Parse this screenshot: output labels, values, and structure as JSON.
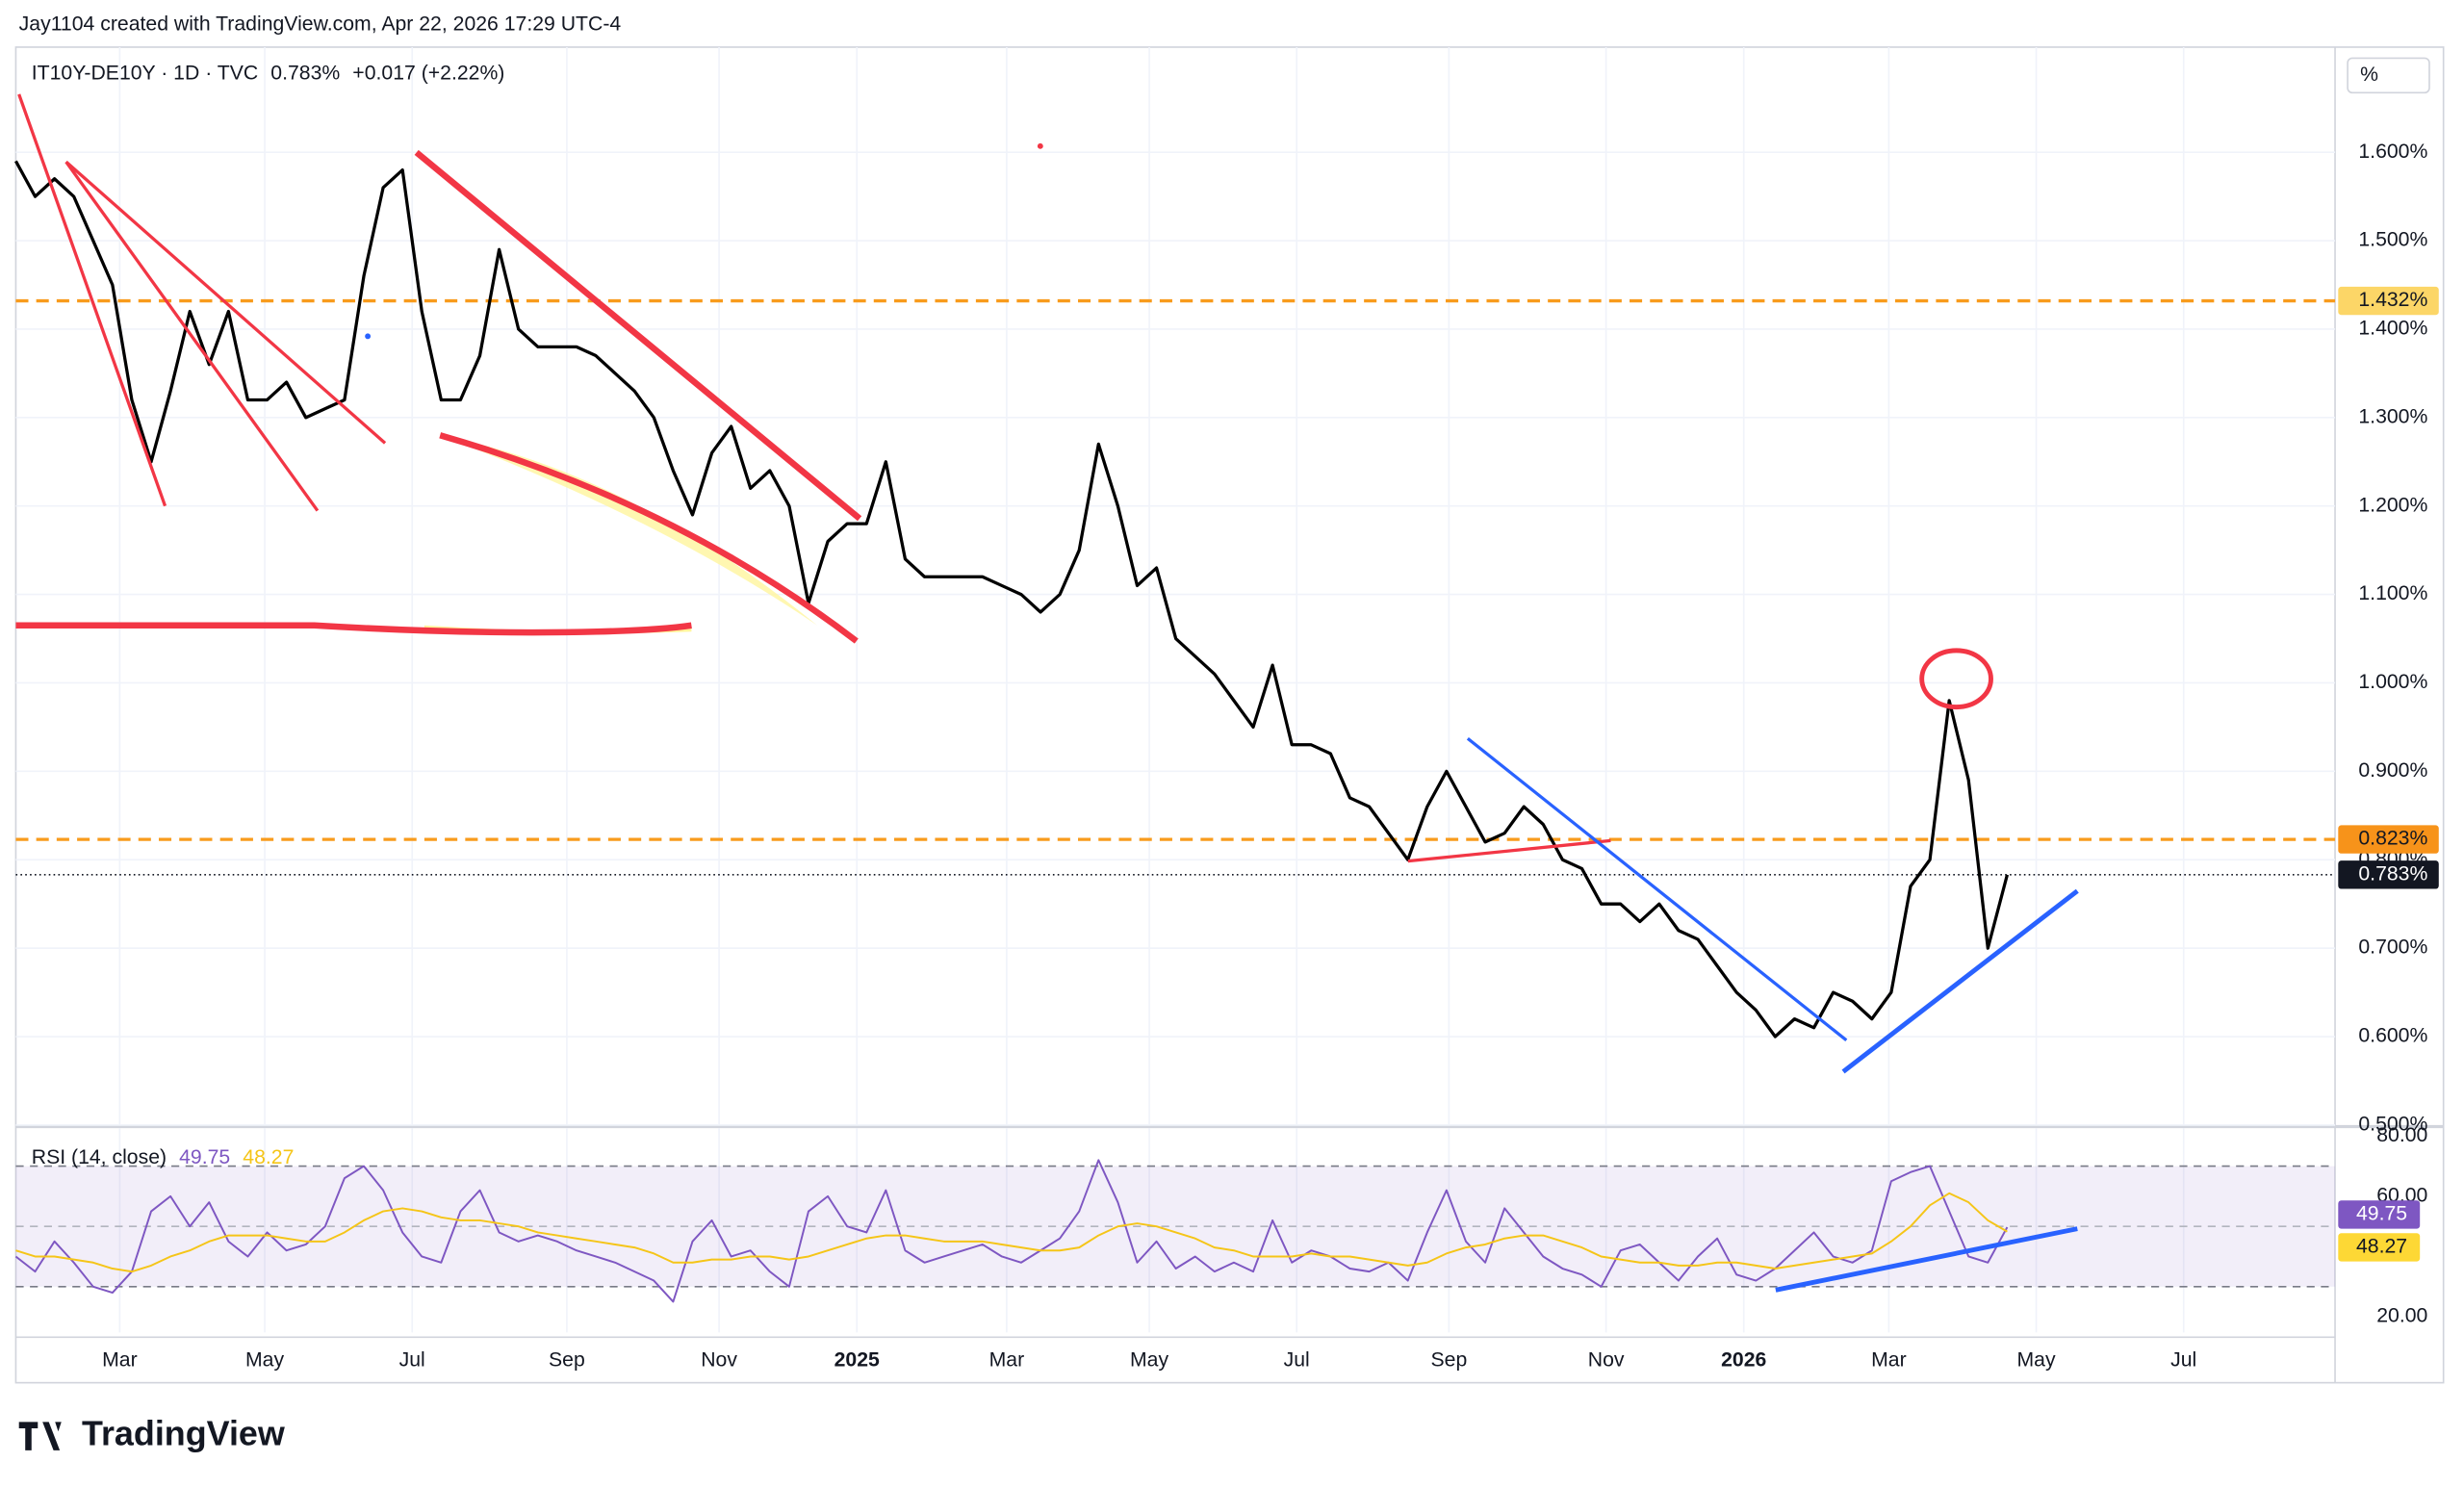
{
  "header": {
    "created": "Jay1104 created with TradingView.com, Apr 22, 2026 17:29 UTC-4"
  },
  "unit": "%",
  "logo": "TradingView",
  "chart_data": [
    {
      "type": "line",
      "title": "IT10Y-DE10Y · 1D · TVC",
      "last": {
        "value": 0.783,
        "label": "0.783%"
      },
      "change": "+0.017 (+2.22%)",
      "x": [
        0,
        8,
        16,
        24,
        32,
        40,
        48,
        56,
        64,
        72,
        80,
        88,
        96,
        104,
        112,
        120,
        128,
        136,
        144,
        152,
        160,
        168,
        176,
        184,
        192,
        200,
        208,
        216,
        224,
        232,
        240,
        248,
        256,
        264,
        272,
        280,
        288,
        296,
        304,
        312,
        320,
        328,
        336,
        344,
        352,
        360,
        368,
        376,
        384,
        392,
        400,
        408,
        416,
        424,
        432,
        440,
        448,
        456,
        464,
        472,
        480,
        488,
        496,
        504,
        512,
        520,
        528,
        536,
        544,
        552,
        560,
        568,
        576,
        584,
        592,
        600,
        608,
        616,
        624,
        632,
        640,
        648,
        656,
        664,
        672,
        680,
        688,
        696,
        704,
        712,
        720,
        728,
        736,
        744,
        752,
        760,
        768,
        776,
        784,
        792,
        800,
        808,
        816,
        824
      ],
      "xlim": [
        0,
        959
      ],
      "xticks": [
        {
          "value": 43,
          "label": "Mar"
        },
        {
          "value": 103,
          "label": "May"
        },
        {
          "value": 164,
          "label": "Jul"
        },
        {
          "value": 228,
          "label": "Sep"
        },
        {
          "value": 291,
          "label": "Nov"
        },
        {
          "value": 348,
          "label": "2025"
        },
        {
          "value": 410,
          "label": "Mar"
        },
        {
          "value": 469,
          "label": "May"
        },
        {
          "value": 530,
          "label": "Jul"
        },
        {
          "value": 593,
          "label": "Sep"
        },
        {
          "value": 658,
          "label": "Nov"
        },
        {
          "value": 715,
          "label": "2026"
        },
        {
          "value": 775,
          "label": "Mar"
        },
        {
          "value": 836,
          "label": "May"
        },
        {
          "value": 897,
          "label": "Jul"
        }
      ],
      "ylim": [
        0.5,
        1.71
      ],
      "yticks": [
        {
          "value": 0.5,
          "label": "0.500%"
        },
        {
          "value": 0.6,
          "label": "0.600%"
        },
        {
          "value": 0.7,
          "label": "0.700%"
        },
        {
          "value": 0.8,
          "label": "0.800%"
        },
        {
          "value": 0.9,
          "label": "0.900%"
        },
        {
          "value": 1.0,
          "label": "1.000%"
        },
        {
          "value": 1.1,
          "label": "1.100%"
        },
        {
          "value": 1.2,
          "label": "1.200%"
        },
        {
          "value": 1.3,
          "label": "1.300%"
        },
        {
          "value": 1.4,
          "label": "1.400%"
        },
        {
          "value": 1.5,
          "label": "1.500%"
        },
        {
          "value": 1.6,
          "label": "1.600%"
        }
      ],
      "grid": true,
      "series": [
        {
          "name": "IT10Y-DE10Y · 1D · TVC",
          "color": "#000000",
          "values": [
            1.59,
            1.55,
            1.57,
            1.55,
            1.5,
            1.45,
            1.32,
            1.25,
            1.33,
            1.42,
            1.36,
            1.42,
            1.32,
            1.32,
            1.34,
            1.3,
            1.31,
            1.32,
            1.46,
            1.56,
            1.58,
            1.42,
            1.32,
            1.32,
            1.37,
            1.49,
            1.4,
            1.38,
            1.38,
            1.38,
            1.37,
            1.35,
            1.33,
            1.3,
            1.24,
            1.19,
            1.26,
            1.29,
            1.22,
            1.24,
            1.2,
            1.09,
            1.16,
            1.18,
            1.18,
            1.25,
            1.14,
            1.12,
            1.12,
            1.12,
            1.12,
            1.11,
            1.1,
            1.08,
            1.1,
            1.15,
            1.27,
            1.2,
            1.11,
            1.13,
            1.05,
            1.03,
            1.01,
            0.98,
            0.95,
            1.02,
            0.93,
            0.93,
            0.92,
            0.87,
            0.86,
            0.83,
            0.8,
            0.86,
            0.9,
            0.86,
            0.82,
            0.83,
            0.86,
            0.84,
            0.8,
            0.79,
            0.75,
            0.75,
            0.73,
            0.75,
            0.72,
            0.71,
            0.68,
            0.65,
            0.63,
            0.6,
            0.62,
            0.61,
            0.65,
            0.64,
            0.62,
            0.65,
            0.77,
            0.8,
            0.98,
            0.89,
            0.7,
            0.783
          ]
        }
      ],
      "hlines": [
        {
          "value": 1.432,
          "label": "1.432%",
          "color": "#f89b1c",
          "badge": "#fcd667"
        },
        {
          "value": 0.823,
          "label": "0.823%",
          "color": "#f89b1c",
          "badge": "#f7931a"
        }
      ]
    },
    {
      "type": "line",
      "title": "RSI (14, close)",
      "ylim": [
        14.8,
        82.6
      ],
      "yticks": [
        {
          "value": 20,
          "label": "20.00"
        },
        {
          "value": 60,
          "label": "60.00"
        },
        {
          "value": 80,
          "label": "80.00"
        }
      ],
      "bands": [
        30,
        70
      ],
      "midline": 50,
      "series": [
        {
          "name": "RSI (14, close)",
          "color": "#7e57c2",
          "values": [
            40,
            35,
            45,
            38,
            30,
            28,
            35,
            55,
            60,
            50,
            58,
            45,
            40,
            48,
            42,
            44,
            50,
            66,
            70,
            62,
            48,
            40,
            38,
            55,
            62,
            48,
            45,
            47,
            45,
            42,
            40,
            38,
            35,
            32,
            25,
            45,
            52,
            40,
            42,
            35,
            30,
            55,
            60,
            50,
            48,
            62,
            42,
            38,
            40,
            42,
            44,
            40,
            38,
            42,
            46,
            55,
            72,
            58,
            38,
            45,
            36,
            40,
            35,
            38,
            35,
            52,
            38,
            42,
            40,
            36,
            35,
            38,
            32,
            48,
            62,
            45,
            38,
            56,
            48,
            40,
            36,
            34,
            30,
            42,
            44,
            38,
            32,
            40,
            46,
            34,
            32,
            36,
            42,
            48,
            40,
            38,
            42,
            65,
            68,
            70,
            55,
            40,
            38,
            49.75
          ]
        },
        {
          "color": "#f5c518",
          "values": [
            42,
            40,
            40,
            39,
            38,
            36,
            35,
            37,
            40,
            42,
            45,
            47,
            47,
            47,
            46,
            45,
            45,
            48,
            52,
            55,
            56,
            55,
            53,
            52,
            52,
            51,
            50,
            48,
            47,
            46,
            45,
            44,
            43,
            41,
            38,
            38,
            39,
            39,
            40,
            40,
            39,
            40,
            42,
            44,
            46,
            47,
            47,
            46,
            45,
            45,
            45,
            44,
            43,
            42,
            42,
            43,
            47,
            50,
            51,
            50,
            48,
            46,
            43,
            42,
            40,
            40,
            40,
            41,
            40,
            40,
            39,
            38,
            37,
            38,
            41,
            43,
            44,
            46,
            47,
            47,
            45,
            43,
            40,
            39,
            38,
            38,
            37,
            37,
            38,
            38,
            37,
            36,
            37,
            38,
            39,
            40,
            41,
            45,
            50,
            57,
            61,
            58,
            52,
            48.27
          ]
        }
      ]
    }
  ]
}
